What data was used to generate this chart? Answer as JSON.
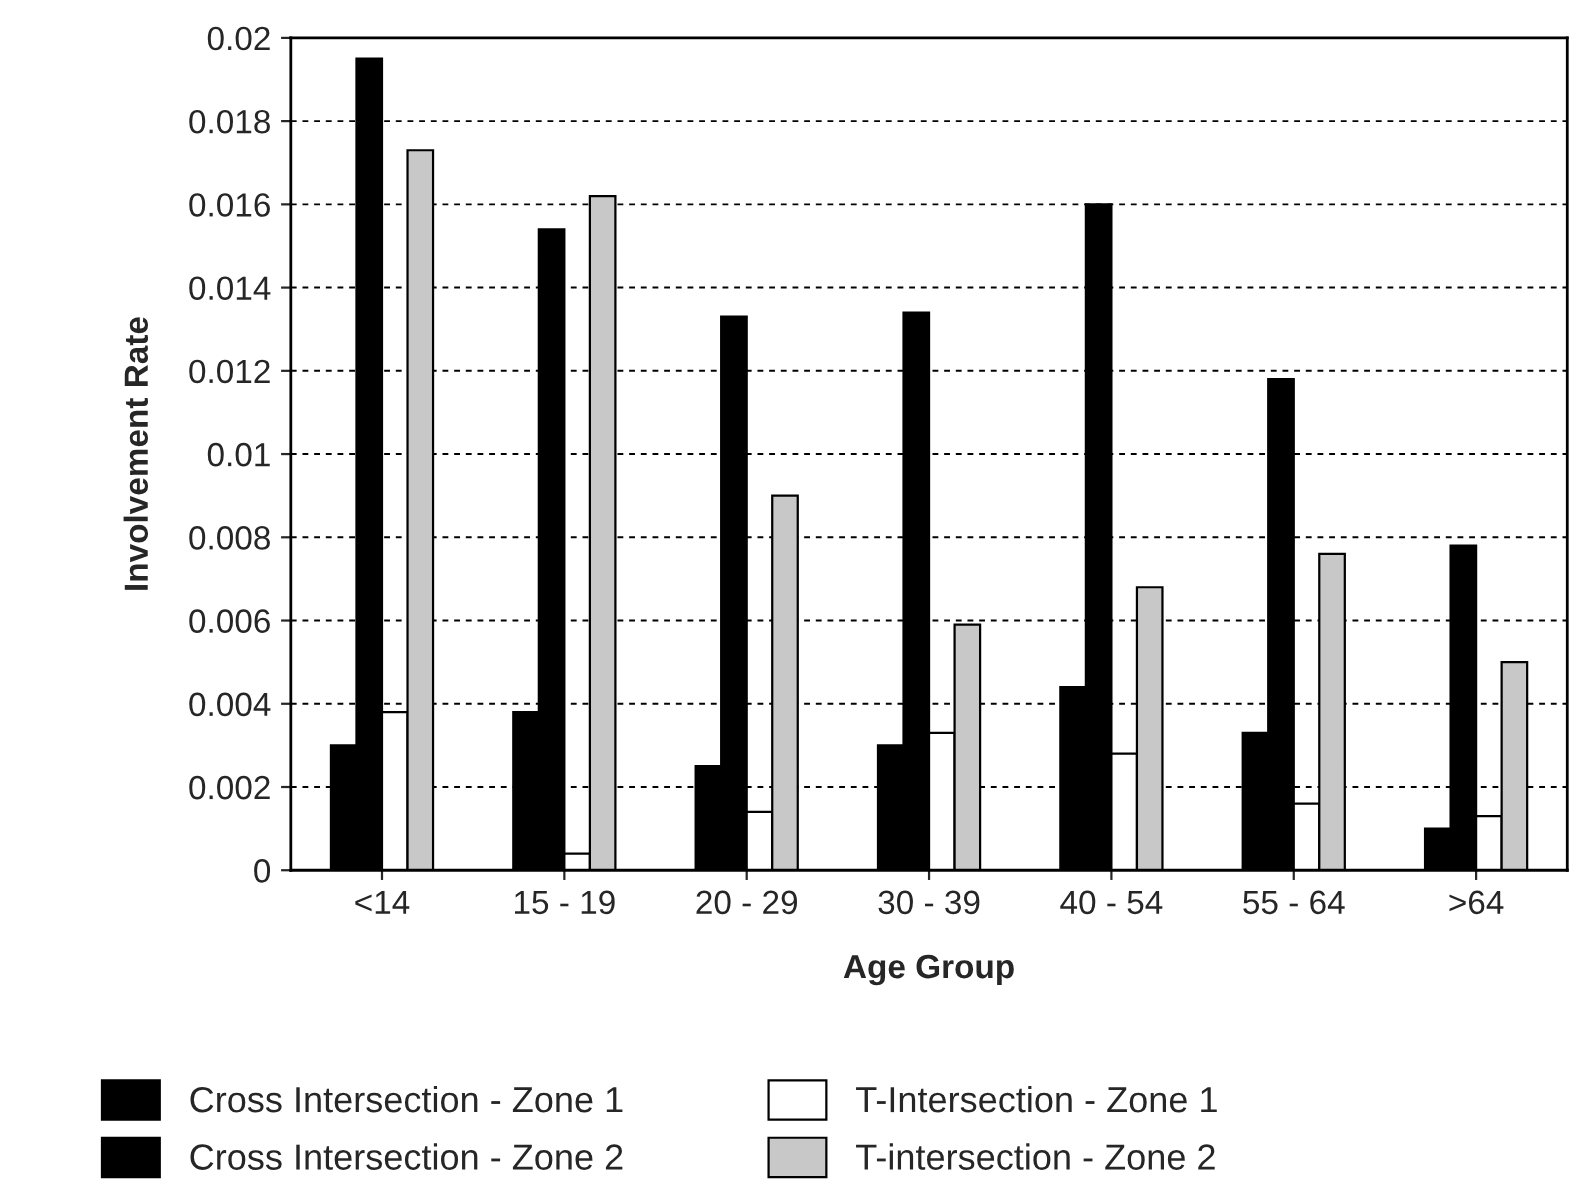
{
  "chart_data": {
    "type": "bar",
    "xlabel": "Age Group",
    "ylabel": "Involvement Rate",
    "categories": [
      "<14",
      "15 - 19",
      "20 - 29",
      "30 - 39",
      "40 - 54",
      "55 - 64",
      ">64"
    ],
    "series": [
      {
        "name": "Cross Intersection - Zone 1",
        "color": "#000000",
        "values": [
          0.003,
          0.0038,
          0.0025,
          0.003,
          0.0044,
          0.0033,
          0.001
        ]
      },
      {
        "name": "Cross Intersection - Zone 2",
        "color": "#000000",
        "values": [
          0.0195,
          0.0154,
          0.0133,
          0.0134,
          0.016,
          0.0118,
          0.0078
        ]
      },
      {
        "name": "T-Intersection - Zone 1",
        "color": "#ffffff",
        "values": [
          0.0038,
          0.0004,
          0.0014,
          0.0033,
          0.0028,
          0.0016,
          0.0013
        ]
      },
      {
        "name": "T-intersection - Zone 2",
        "color": "#c8c8c8",
        "values": [
          0.0173,
          0.0162,
          0.009,
          0.0059,
          0.0068,
          0.0076,
          0.005
        ]
      }
    ],
    "ylim": [
      0,
      0.02
    ],
    "yticks": [
      {
        "value": 0,
        "label": "0"
      },
      0.002,
      0.004,
      0.006,
      0.008,
      {
        "value": 0.01,
        "label": "0.01"
      },
      0.012,
      0.014,
      0.016,
      0.018,
      {
        "value": 0.02,
        "label": "0.02"
      }
    ],
    "grid": "y",
    "legend": "bottom"
  }
}
